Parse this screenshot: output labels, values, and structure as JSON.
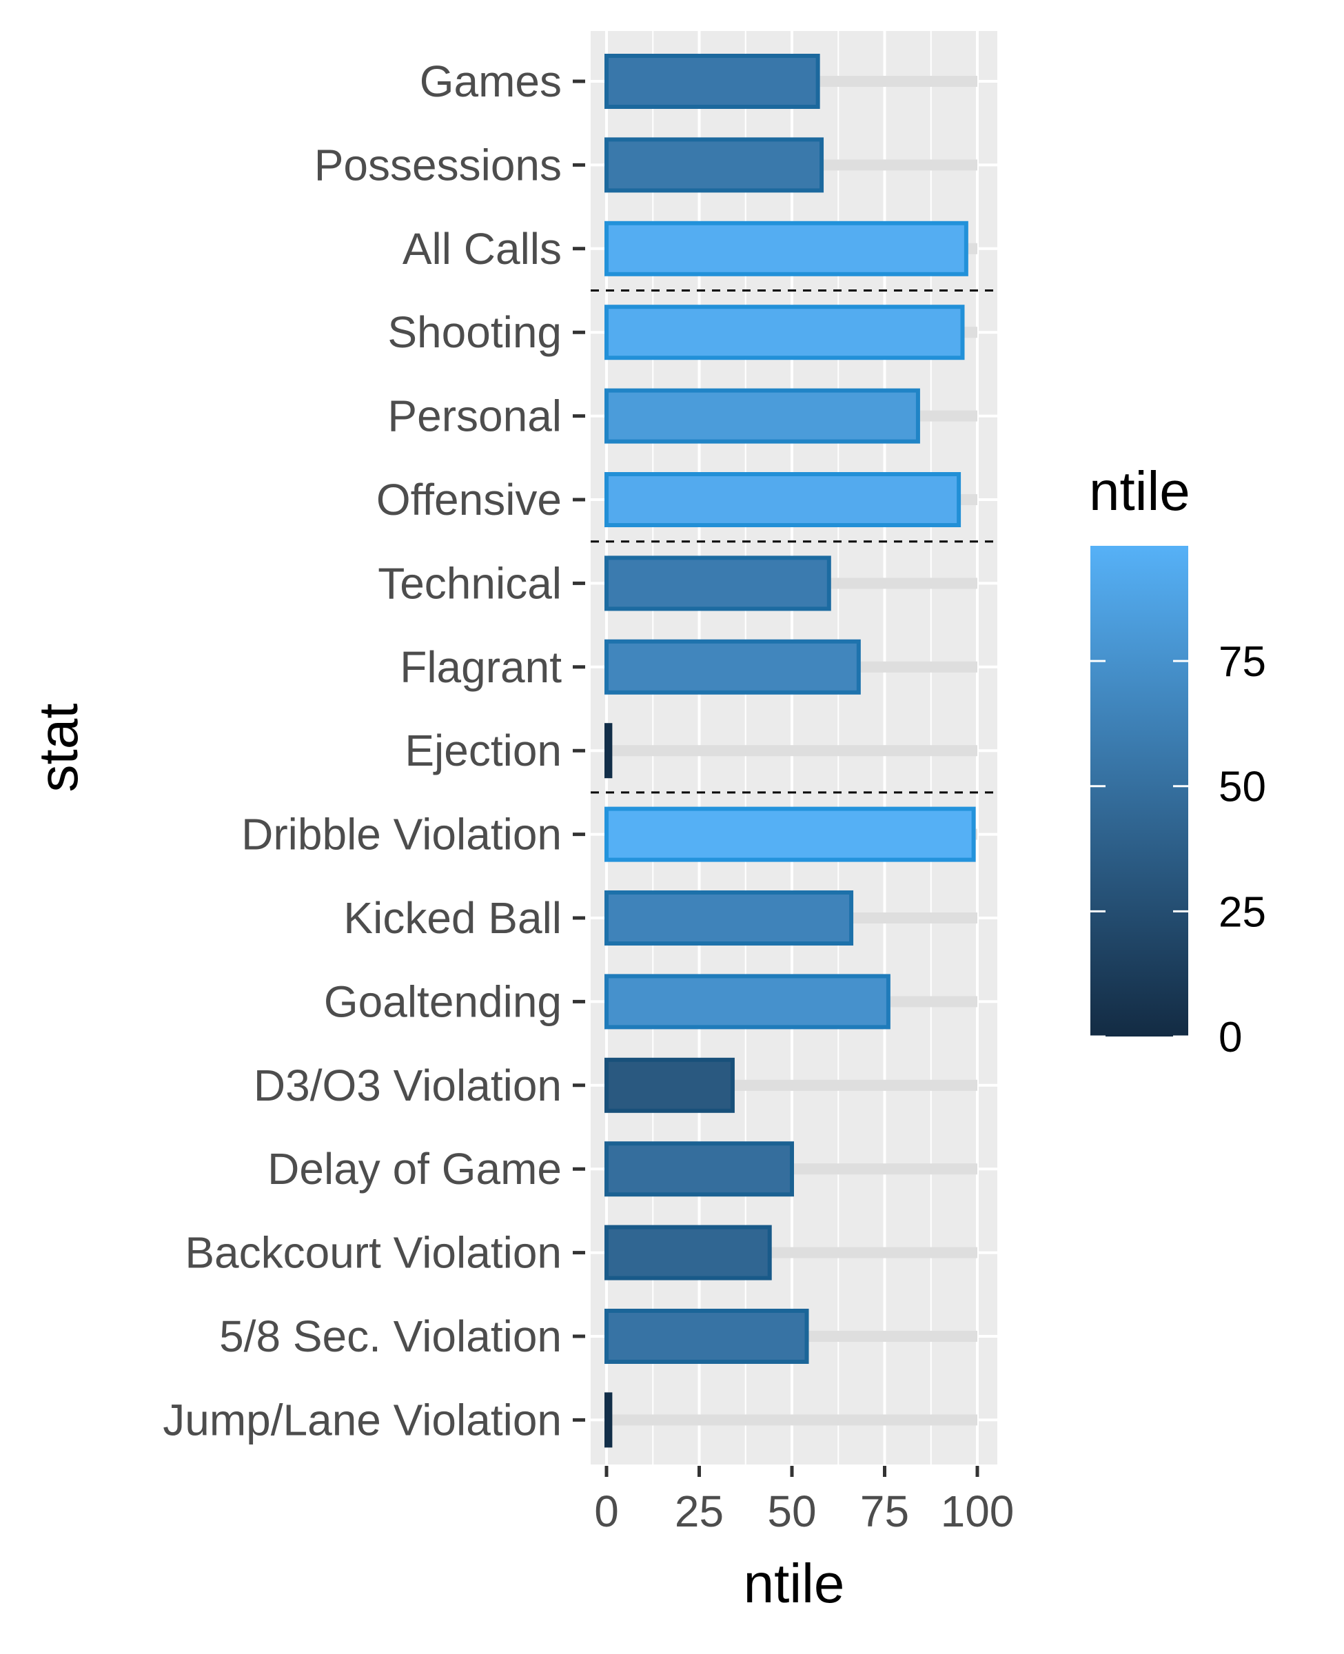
{
  "chart_data": {
    "type": "bar",
    "orientation": "horizontal",
    "title": "",
    "xlabel": "ntile",
    "ylabel": "stat",
    "xlim": [
      0,
      100
    ],
    "x_ticks": [
      "0",
      "25",
      "50",
      "75",
      "100"
    ],
    "grid": true,
    "categories": [
      "Games",
      "Possessions",
      "All Calls",
      "Shooting",
      "Personal",
      "Offensive",
      "Technical",
      "Flagrant",
      "Ejection",
      "Dribble Violation",
      "Kicked Ball",
      "Goaltending",
      "D3/O3 Violation",
      "Delay of Game",
      "Backcourt Violation",
      "5/8 Sec. Violation",
      "Jump/Lane Violation"
    ],
    "values": [
      57,
      58,
      97,
      96,
      84,
      95,
      60,
      68,
      1,
      99,
      66,
      76,
      34,
      50,
      44,
      54,
      1
    ],
    "background_values": [
      100,
      100,
      100,
      100,
      100,
      100,
      100,
      100,
      100,
      100,
      100,
      100,
      100,
      100,
      100,
      100,
      100
    ],
    "group_separators_after": [
      "All Calls",
      "Offensive",
      "Ejection"
    ],
    "legend": {
      "title": "ntile",
      "type": "colorbar",
      "ticks": [
        "0",
        "25",
        "50",
        "75"
      ],
      "range": [
        0,
        100
      ],
      "position": "right"
    },
    "colors": {
      "low": "#132b43",
      "high": "#56b1f7",
      "panel": "#ebebeb",
      "grid": "#ffffff",
      "ghost_bar": "#dedede"
    }
  }
}
